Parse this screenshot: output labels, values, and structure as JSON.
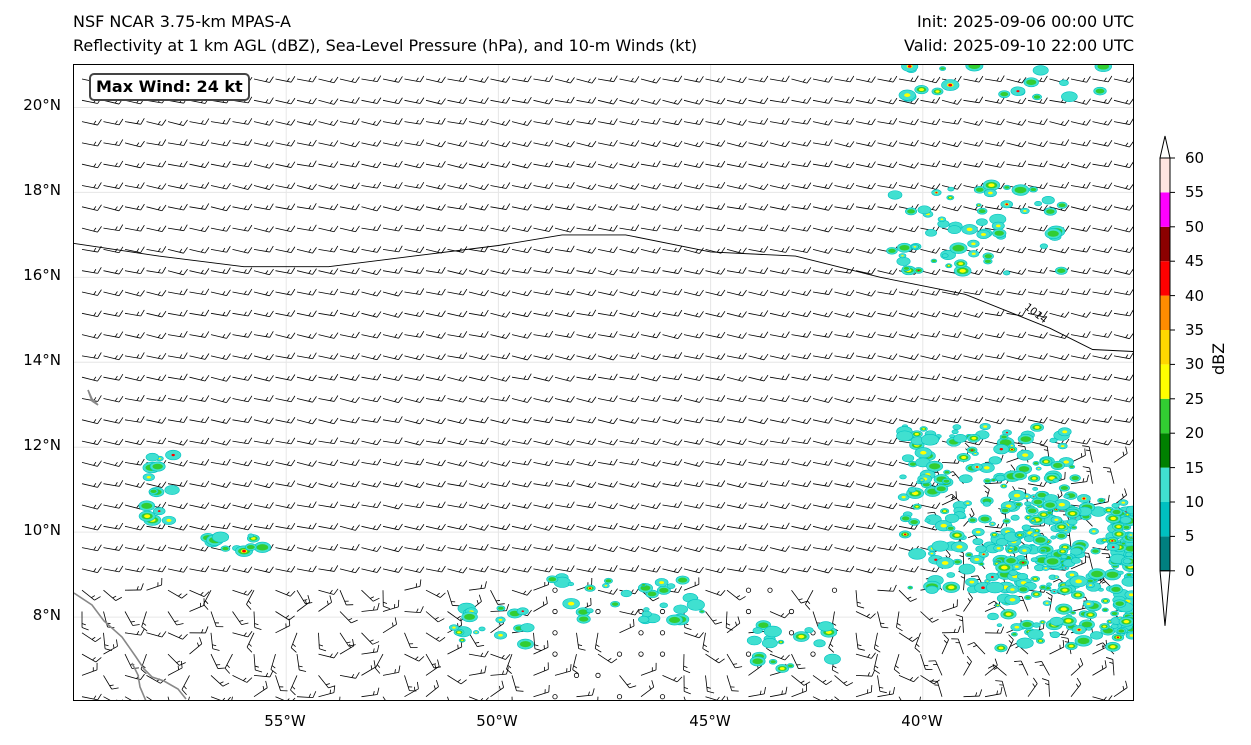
{
  "header": {
    "title_left_1": "NSF NCAR 3.75-km MPAS-A",
    "title_left_2": "Reflectivity at 1 km AGL (dBZ), Sea-Level Pressure (hPa), and 10-m Winds (kt)",
    "title_right_1": "Init: 2025-09-06 00:00 UTC",
    "title_right_2": "Valid: 2025-09-10 22:00 UTC"
  },
  "annotation": {
    "max_wind": "Max Wind: 24 kt"
  },
  "map": {
    "lon_range": [
      -60,
      -35
    ],
    "lat_range": [
      6,
      21
    ],
    "lat_ticks": [
      "20°N",
      "18°N",
      "16°N",
      "14°N",
      "12°N",
      "10°N",
      "8°N"
    ],
    "lon_ticks": [
      "55°W",
      "50°W",
      "45°W",
      "40°W"
    ],
    "isobar_label": "1014",
    "isobar_1014": [
      [
        -60,
        16.8
      ],
      [
        -58,
        16.5
      ],
      [
        -56,
        16.25
      ],
      [
        -54,
        16.25
      ],
      [
        -52,
        16.5
      ],
      [
        -50,
        16.75
      ],
      [
        -48.5,
        17.0
      ],
      [
        -47,
        17.0
      ],
      [
        -45,
        16.6
      ],
      [
        -43,
        16.5
      ],
      [
        -41,
        16.0
      ],
      [
        -39,
        15.6
      ],
      [
        -37,
        14.8
      ],
      [
        -36,
        14.3
      ],
      [
        -35,
        14.25
      ]
    ],
    "coastline_color": "#888888"
  },
  "colorbar": {
    "label": "dBZ",
    "ticks": [
      "0",
      "5",
      "10",
      "15",
      "20",
      "25",
      "30",
      "35",
      "40",
      "45",
      "50",
      "55",
      "60"
    ],
    "colors": [
      "#008080",
      "#00c0c0",
      "#40e0d0",
      "#008000",
      "#32cd32",
      "#ffff00",
      "#ffd700",
      "#ff8c00",
      "#ff0000",
      "#8b0000",
      "#ff00ff",
      "#ffe4e1"
    ]
  }
}
